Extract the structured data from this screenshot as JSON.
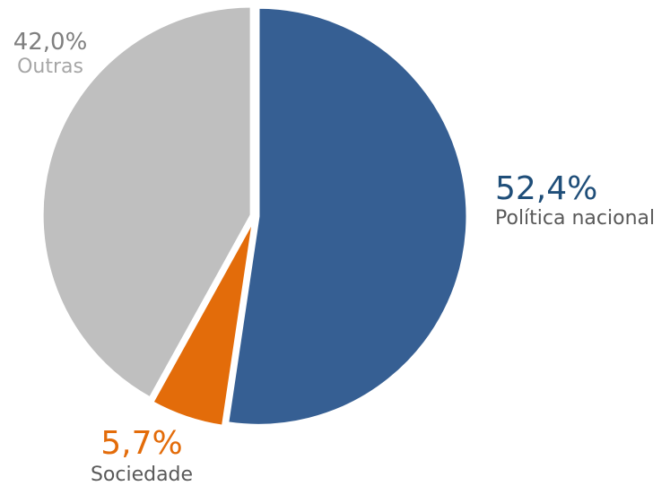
{
  "chart_data": {
    "type": "pie",
    "start_angle_deg": 0,
    "direction": "clockwise",
    "slices": [
      {
        "label": "Política nacional",
        "value": 52.4,
        "display": "52,4%",
        "color": "#365f93"
      },
      {
        "label": "Sociedade",
        "value": 5.7,
        "display": "5,7%",
        "color": "#e36c0a"
      },
      {
        "label": "Outras",
        "value": 42.0,
        "display": "42,0%",
        "color": "#bfbfbf"
      }
    ],
    "label_colors": {
      "politica_pct": "#1f4e79",
      "sociedade_pct": "#e36c0a",
      "outras_pct": "#7f7f7f",
      "outras_name": "#a6a6a6",
      "name_dark": "#595959"
    }
  }
}
